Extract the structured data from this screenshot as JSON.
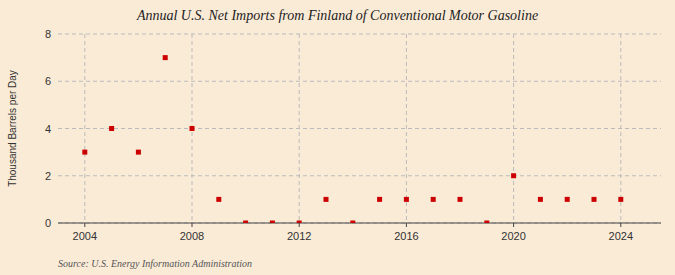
{
  "chart_data": {
    "type": "scatter",
    "title": "Annual U.S. Net Imports from Finland of Conventional Motor Gasoline",
    "ylabel": "Thousand Barrels per Day",
    "annotations": [
      "Source: U.S. Energy Information Administration"
    ],
    "x": [
      2004,
      2005,
      2006,
      2007,
      2008,
      2009,
      2010,
      2011,
      2012,
      2013,
      2014,
      2015,
      2016,
      2017,
      2018,
      2019,
      2020,
      2021,
      2022,
      2023,
      2024
    ],
    "values": [
      3,
      4,
      3,
      7,
      4,
      1,
      0,
      0,
      0,
      1,
      0,
      1,
      1,
      1,
      1,
      0,
      2,
      1,
      1,
      1,
      1
    ],
    "color": "#cc0000",
    "marker": "square",
    "xlim": [
      2003,
      2025.5
    ],
    "ylim": [
      0,
      8
    ],
    "xticks": [
      2004,
      2008,
      2012,
      2016,
      2020,
      2024
    ],
    "yticks": [
      0,
      2,
      4,
      6,
      8
    ],
    "grid": true
  }
}
